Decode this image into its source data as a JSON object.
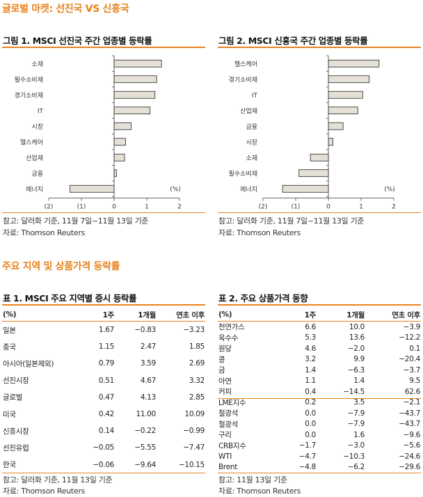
{
  "section1_title": "글로벌 마켓: 선진국 VS 신흥국",
  "section2_title": "주요 지역 및 상품가격 등락률",
  "fig1": {
    "title": "그림 1. MSCI 선진국 주간 업종별 등락률",
    "note": "참고: 달러화 기준, 11월 7일~11월 13일 기준",
    "source": "자료: Thomson Reuters"
  },
  "fig2": {
    "title": "그림 2. MSCI 신흥국 주간 업종별 등락률",
    "note": "참고: 달러화 기준, 11월 7일~11월 13일 기준",
    "source": "자료: Thomson Reuters"
  },
  "chart_data": [
    {
      "type": "bar",
      "orientation": "horizontal",
      "title": "그림 1. MSCI 선진국 주간 업종별 등락률",
      "unit_label": "(%)",
      "categories": [
        "소재",
        "필수소비재",
        "경기소비재",
        "IT",
        "시장",
        "헬스케어",
        "산업재",
        "금융",
        "에너지"
      ],
      "values": [
        1.45,
        1.3,
        1.25,
        1.1,
        0.52,
        0.35,
        0.32,
        0.07,
        -1.35
      ],
      "xlim": [
        -2,
        2
      ],
      "xticks": [
        "(2)",
        "(1)",
        "0",
        "1",
        "2"
      ],
      "bar_color": "#e4e0d6"
    },
    {
      "type": "bar",
      "orientation": "horizontal",
      "title": "그림 2. MSCI 신흥국 주간 업종별 등락률",
      "unit_label": "(%)",
      "categories": [
        "헬스케어",
        "경기소비재",
        "IT",
        "산업재",
        "금융",
        "시장",
        "소재",
        "필수소비재",
        "에너지"
      ],
      "values": [
        1.55,
        1.25,
        1.05,
        0.9,
        0.45,
        0.14,
        -0.55,
        -0.9,
        -1.4
      ],
      "xlim": [
        -2,
        2
      ],
      "xticks": [
        "(2)",
        "(1)",
        "0",
        "1",
        "2"
      ],
      "bar_color": "#e4e0d6"
    }
  ],
  "table1": {
    "title": "표 1. MSCI 주요 지역별 증시 등락률",
    "headers": [
      "(%)",
      "1주",
      "1개월",
      "연초 이후"
    ],
    "rows": [
      [
        "일본",
        "1.67",
        "−0.83",
        "−3.23"
      ],
      [
        "중국",
        "1.15",
        "2.47",
        "1.85"
      ],
      [
        "아시아(일본제외)",
        "0.79",
        "3.59",
        "2.69"
      ],
      [
        "선진시장",
        "0.51",
        "4.67",
        "3.32"
      ],
      [
        "글로벌",
        "0.47",
        "4.13",
        "2.85"
      ],
      [
        "미국",
        "0.42",
        "11.00",
        "10.09"
      ],
      [
        "신흥시장",
        "0.14",
        "−0.22",
        "−0.99"
      ],
      [
        "선진유럽",
        "−0.05",
        "−5.55",
        "−7.47"
      ],
      [
        "한국",
        "−0.06",
        "−9.64",
        "−10.15"
      ]
    ],
    "note": "참고: 달러화 기준, 11월 13일 기준",
    "source": "자료: Thomson Reuters"
  },
  "table2": {
    "title": "표 2. 주요 상품가격 동향",
    "headers": [
      "(%)",
      "1주",
      "1개월",
      "연초 이후"
    ],
    "rows": [
      [
        "천연가스",
        "6.6",
        "10.0",
        "−3.9"
      ],
      [
        "옥수수",
        "5.3",
        "13.6",
        "−12.2"
      ],
      [
        "원당",
        "4.6",
        "−2.0",
        "0.1"
      ],
      [
        "콩",
        "3.2",
        "9.9",
        "−20.4"
      ],
      [
        "금",
        "1.4",
        "−6.3",
        "−3.7"
      ],
      [
        "아연",
        "1.1",
        "1.4",
        "9.5"
      ],
      [
        "커피",
        "0.4",
        "−14.5",
        "62.6"
      ],
      [
        "LME지수",
        "0.2",
        "3.5",
        "−2.1"
      ],
      [
        "철광석",
        "0.0",
        "−7.9",
        "−43.7"
      ],
      [
        "철광석",
        "0.0",
        "−7.9",
        "−43.7"
      ],
      [
        "구리",
        "0.0",
        "1.6",
        "−9.6"
      ],
      [
        "CRB지수",
        "−1.7",
        "−3.0",
        "−5.6"
      ],
      [
        "WTI",
        "−4.7",
        "−10.3",
        "−24.6"
      ],
      [
        "Brent",
        "−4.8",
        "−6.2",
        "−29.6"
      ]
    ],
    "note": "참고: 11월 13일 기준",
    "source": "자료: Thomson Reuters"
  }
}
